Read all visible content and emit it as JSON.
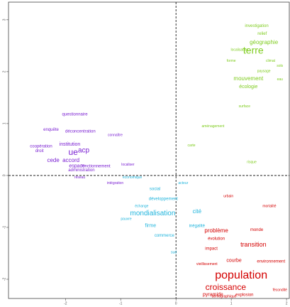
{
  "chart_data": {
    "type": "text-scatter",
    "xlim": [
      -3.03,
      2.05
    ],
    "ylim": [
      -2.37,
      3.34
    ],
    "xticks": [
      -2,
      -1,
      0,
      1,
      2
    ],
    "yticks": [
      -2,
      -1,
      0,
      1,
      2,
      3
    ],
    "vlines": [
      0
    ],
    "hlines": [
      0
    ],
    "series": [
      {
        "color": "#7fcc1f",
        "labels": [
          "terre",
          "géographie",
          "relief",
          "investigation",
          "localisation",
          "mouvement",
          "écologie",
          "forme",
          "climat",
          "paysage",
          "sols",
          "eau",
          "surface",
          "aménagement",
          "carte",
          "risque"
        ],
        "x": [
          1.4,
          1.59,
          1.56,
          1.46,
          1.15,
          1.31,
          1.31,
          1.0,
          1.71,
          1.59,
          1.88,
          1.88,
          1.24,
          0.67,
          0.28,
          1.37
        ],
        "values": [
          2.4,
          2.56,
          2.73,
          2.88,
          2.42,
          1.86,
          1.71,
          2.21,
          2.21,
          2.01,
          2.11,
          1.85,
          1.33,
          0.95,
          0.58,
          0.26
        ],
        "sizes": [
          14,
          8,
          6,
          6,
          5,
          8,
          7,
          5,
          5,
          5,
          5,
          5,
          5,
          5,
          5,
          5
        ]
      },
      {
        "color": "#7a1fd2",
        "labels": [
          "ue",
          "acp",
          "accord",
          "cede",
          "espace",
          "institution",
          "enquête",
          "questionnaire",
          "déconcentration",
          "connaître",
          "coopération",
          "droit",
          "administration",
          "fonctionnement",
          "localiser",
          "intégration",
          "réseau"
        ],
        "x": [
          -1.86,
          -1.67,
          -1.9,
          -2.22,
          -1.79,
          -1.92,
          -2.26,
          -1.83,
          -1.73,
          -1.1,
          -2.44,
          -2.47,
          -1.71,
          -1.45,
          -0.87,
          -1.1,
          -1.74
        ],
        "values": [
          0.44,
          0.48,
          0.29,
          0.29,
          0.18,
          0.6,
          0.88,
          1.18,
          0.85,
          0.78,
          0.56,
          0.47,
          0.1,
          0.18,
          0.21,
          -0.15,
          -0.04
        ],
        "sizes": [
          12,
          10,
          8,
          8,
          7,
          7,
          6,
          6,
          6,
          5,
          6,
          6,
          6,
          6,
          5,
          5,
          5
        ]
      },
      {
        "color": "#1fb4dc",
        "labels": [
          "mondialisation",
          "cité",
          "firme",
          "commerce",
          "développement",
          "inégalité",
          "acteur",
          "social",
          "économique",
          "pauvre",
          "sud",
          "échange"
        ],
        "x": [
          -0.42,
          0.38,
          -0.46,
          -0.21,
          -0.23,
          0.38,
          0.13,
          -0.38,
          -0.79,
          -0.9,
          -0.04,
          -0.62
        ],
        "values": [
          -0.73,
          -0.7,
          -0.97,
          -1.16,
          -0.45,
          -0.97,
          -0.15,
          -0.26,
          -0.04,
          -0.84,
          -1.48,
          -0.59
        ],
        "sizes": [
          10,
          8,
          7,
          6,
          6,
          6,
          5,
          6,
          5,
          5,
          5,
          5
        ]
      },
      {
        "color": "#d40000",
        "labels": [
          "population",
          "croissance",
          "transition",
          "problème",
          "pyramide",
          "courbe",
          "environnement",
          "évolution",
          "monde",
          "explosion",
          "fécondité",
          "vieillissement",
          "mortalité",
          "urbain",
          "impact",
          "démographique"
        ],
        "x": [
          1.18,
          0.9,
          1.4,
          0.73,
          0.67,
          1.05,
          1.72,
          0.73,
          1.46,
          1.24,
          1.88,
          0.56,
          1.69,
          0.95,
          0.64,
          0.87
        ],
        "values": [
          -1.93,
          -2.16,
          -1.34,
          -1.07,
          -2.3,
          -1.64,
          -1.66,
          -1.22,
          -1.05,
          -2.3,
          -2.21,
          -1.71,
          -0.59,
          -0.4,
          -1.41,
          -2.33
        ],
        "sizes": [
          16,
          12,
          9,
          8,
          7,
          7,
          6,
          6,
          6,
          6,
          5,
          5,
          5,
          5,
          6,
          5
        ]
      }
    ]
  }
}
